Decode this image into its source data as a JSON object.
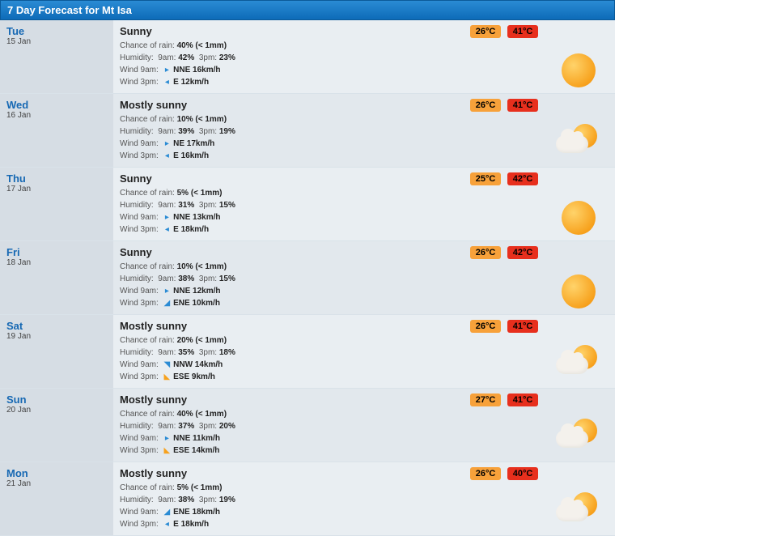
{
  "header": {
    "title": "7 Day Forecast for Mt Isa"
  },
  "days": [
    {
      "name": "Tue",
      "date": "15 Jan",
      "condition": "Sunny",
      "rain_label": "Chance of rain:",
      "rain_val": "40% (< 1mm)",
      "hum_label": "Humidity:",
      "hum_9l": "9am:",
      "hum_9v": "42%",
      "hum_3l": "3pm:",
      "hum_3v": "23%",
      "w9_label": "Wind 9am:",
      "w9_dir": "NNE 16km/h",
      "w9_arrow": "▸",
      "w9_color": "arrow-blue",
      "w3_label": "Wind 3pm:",
      "w3_dir": "E 12km/h",
      "w3_arrow": "◂",
      "w3_color": "arrow-blue",
      "low": "26°C",
      "high": "41°C",
      "icon": "sunny"
    },
    {
      "name": "Wed",
      "date": "16 Jan",
      "condition": "Mostly sunny",
      "rain_label": "Chance of rain:",
      "rain_val": "10% (< 1mm)",
      "hum_label": "Humidity:",
      "hum_9l": "9am:",
      "hum_9v": "39%",
      "hum_3l": "3pm:",
      "hum_3v": "19%",
      "w9_label": "Wind 9am:",
      "w9_dir": "NE 17km/h",
      "w9_arrow": "▸",
      "w9_color": "arrow-blue",
      "w3_label": "Wind 3pm:",
      "w3_dir": "E 16km/h",
      "w3_arrow": "◂",
      "w3_color": "arrow-blue",
      "low": "26°C",
      "high": "41°C",
      "icon": "mostly"
    },
    {
      "name": "Thu",
      "date": "17 Jan",
      "condition": "Sunny",
      "rain_label": "Chance of rain:",
      "rain_val": "5% (< 1mm)",
      "hum_label": "Humidity:",
      "hum_9l": "9am:",
      "hum_9v": "31%",
      "hum_3l": "3pm:",
      "hum_3v": "15%",
      "w9_label": "Wind 9am:",
      "w9_dir": "NNE 13km/h",
      "w9_arrow": "▸",
      "w9_color": "arrow-blue",
      "w3_label": "Wind 3pm:",
      "w3_dir": "E 18km/h",
      "w3_arrow": "◂",
      "w3_color": "arrow-blue",
      "low": "25°C",
      "high": "42°C",
      "icon": "sunny"
    },
    {
      "name": "Fri",
      "date": "18 Jan",
      "condition": "Sunny",
      "rain_label": "Chance of rain:",
      "rain_val": "10% (< 1mm)",
      "hum_label": "Humidity:",
      "hum_9l": "9am:",
      "hum_9v": "38%",
      "hum_3l": "3pm:",
      "hum_3v": "15%",
      "w9_label": "Wind 9am:",
      "w9_dir": "NNE 12km/h",
      "w9_arrow": "▸",
      "w9_color": "arrow-blue",
      "w3_label": "Wind 3pm:",
      "w3_dir": "ENE 10km/h",
      "w3_arrow": "◢",
      "w3_color": "arrow-blue",
      "low": "26°C",
      "high": "42°C",
      "icon": "sunny"
    },
    {
      "name": "Sat",
      "date": "19 Jan",
      "condition": "Mostly sunny",
      "rain_label": "Chance of rain:",
      "rain_val": "20% (< 1mm)",
      "hum_label": "Humidity:",
      "hum_9l": "9am:",
      "hum_9v": "35%",
      "hum_3l": "3pm:",
      "hum_3v": "18%",
      "w9_label": "Wind 9am:",
      "w9_dir": "NNW 14km/h",
      "w9_arrow": "◥",
      "w9_color": "arrow-blue",
      "w3_label": "Wind 3pm:",
      "w3_dir": "ESE 9km/h",
      "w3_arrow": "◣",
      "w3_color": "arrow-orange",
      "low": "26°C",
      "high": "41°C",
      "icon": "mostly"
    },
    {
      "name": "Sun",
      "date": "20 Jan",
      "condition": "Mostly sunny",
      "rain_label": "Chance of rain:",
      "rain_val": "40% (< 1mm)",
      "hum_label": "Humidity:",
      "hum_9l": "9am:",
      "hum_9v": "37%",
      "hum_3l": "3pm:",
      "hum_3v": "20%",
      "w9_label": "Wind 9am:",
      "w9_dir": "NNE 11km/h",
      "w9_arrow": "▸",
      "w9_color": "arrow-blue",
      "w3_label": "Wind 3pm:",
      "w3_dir": "ESE 14km/h",
      "w3_arrow": "◣",
      "w3_color": "arrow-orange",
      "low": "27°C",
      "high": "41°C",
      "icon": "mostly"
    },
    {
      "name": "Mon",
      "date": "21 Jan",
      "condition": "Mostly sunny",
      "rain_label": "Chance of rain:",
      "rain_val": "5% (< 1mm)",
      "hum_label": "Humidity:",
      "hum_9l": "9am:",
      "hum_9v": "38%",
      "hum_3l": "3pm:",
      "hum_3v": "19%",
      "w9_label": "Wind 9am:",
      "w9_dir": "ENE 18km/h",
      "w9_arrow": "◢",
      "w9_color": "arrow-blue",
      "w3_label": "Wind 3pm:",
      "w3_dir": "E 18km/h",
      "w3_arrow": "◂",
      "w3_color": "arrow-blue",
      "low": "26°C",
      "high": "40°C",
      "icon": "mostly"
    }
  ]
}
